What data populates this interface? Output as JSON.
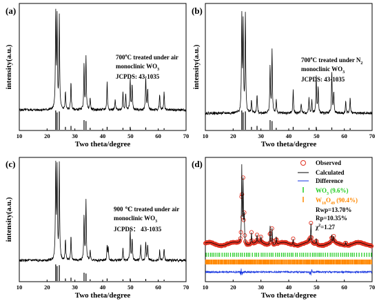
{
  "chart_data": [
    {
      "type": "line",
      "panel_label": "(a)",
      "xlabel": "Two theta/degree",
      "ylabel": "intensity(a.u.)",
      "xlim": [
        10,
        70
      ],
      "xticks": [
        10,
        20,
        30,
        40,
        50,
        60,
        70
      ],
      "annotation": {
        "temp": "700",
        "deg": "o",
        "rest": "C treated under air",
        "phase": "monoclinic WO",
        "phase_sub": "3",
        "card": "JCPDS: 43-1035"
      },
      "peaks": [
        [
          23.1,
          0.95
        ],
        [
          23.6,
          0.88
        ],
        [
          24.4,
          0.92
        ],
        [
          26.6,
          0.18
        ],
        [
          28.6,
          0.28
        ],
        [
          33.3,
          0.45
        ],
        [
          34.0,
          0.52
        ],
        [
          35.5,
          0.12
        ],
        [
          41.6,
          0.28
        ],
        [
          44.5,
          0.1
        ],
        [
          47.3,
          0.18
        ],
        [
          48.3,
          0.15
        ],
        [
          49.9,
          0.3
        ],
        [
          50.6,
          0.25
        ],
        [
          55.5,
          0.33
        ],
        [
          56.2,
          0.2
        ],
        [
          60.5,
          0.15
        ],
        [
          62.1,
          0.18
        ]
      ],
      "reference_sticks": [
        [
          23.1,
          1.0
        ],
        [
          23.6,
          0.9
        ],
        [
          24.4,
          0.95
        ],
        [
          26.6,
          0.15
        ],
        [
          28.6,
          0.2
        ],
        [
          33.3,
          0.5
        ],
        [
          34.0,
          0.45
        ],
        [
          35.5,
          0.1
        ],
        [
          41.6,
          0.15
        ],
        [
          47.3,
          0.1
        ],
        [
          49.9,
          0.15
        ],
        [
          55.5,
          0.12
        ],
        [
          62.1,
          0.08
        ]
      ]
    },
    {
      "type": "line",
      "panel_label": "(b)",
      "xlabel": "Two theta/degree",
      "ylabel": "intensity(a.u.)",
      "xlim": [
        10,
        70
      ],
      "xticks": [
        10,
        20,
        30,
        40,
        50,
        60,
        70
      ],
      "annotation": {
        "temp": "700",
        "deg": "o",
        "rest": "C treated under N",
        "rest_sub": "2",
        "phase": "monoclinic WO",
        "phase_sub": "3",
        "card": "JCPDS: 43-1035"
      },
      "peaks": [
        [
          23.1,
          0.92
        ],
        [
          23.6,
          0.85
        ],
        [
          24.4,
          0.95
        ],
        [
          26.6,
          0.12
        ],
        [
          28.6,
          0.18
        ],
        [
          33.3,
          0.45
        ],
        [
          34.0,
          0.6
        ],
        [
          35.5,
          0.12
        ],
        [
          41.6,
          0.22
        ],
        [
          44.5,
          0.1
        ],
        [
          47.3,
          0.15
        ],
        [
          48.3,
          0.12
        ],
        [
          49.9,
          0.35
        ],
        [
          50.6,
          0.25
        ],
        [
          55.5,
          0.4
        ],
        [
          56.2,
          0.2
        ],
        [
          60.5,
          0.12
        ],
        [
          62.1,
          0.15
        ]
      ],
      "reference_sticks": [
        [
          23.1,
          1.0
        ],
        [
          23.6,
          0.9
        ],
        [
          24.4,
          0.95
        ],
        [
          26.6,
          0.15
        ],
        [
          28.6,
          0.2
        ],
        [
          33.3,
          0.5
        ],
        [
          34.0,
          0.45
        ],
        [
          35.5,
          0.1
        ],
        [
          41.6,
          0.15
        ],
        [
          47.3,
          0.1
        ],
        [
          49.9,
          0.15
        ],
        [
          55.5,
          0.12
        ],
        [
          62.1,
          0.08
        ]
      ]
    },
    {
      "type": "line",
      "panel_label": "(c)",
      "xlabel": "Two theta/degree",
      "ylabel": "intensity(a.u.)",
      "xlim": [
        10,
        70
      ],
      "xticks": [
        10,
        20,
        30,
        40,
        50,
        60,
        70
      ],
      "annotation": {
        "temp": "900",
        "deg": "",
        "rest": "℃ treated under air",
        "phase": "monoclinic WO",
        "phase_sub": "3",
        "card": "JCPDS：  43-1035"
      },
      "peaks": [
        [
          23.1,
          0.98
        ],
        [
          23.6,
          0.9
        ],
        [
          24.4,
          0.96
        ],
        [
          26.6,
          0.22
        ],
        [
          28.6,
          0.24
        ],
        [
          33.3,
          0.45
        ],
        [
          34.0,
          0.6
        ],
        [
          35.5,
          0.1
        ],
        [
          41.6,
          0.15
        ],
        [
          42.0,
          0.12
        ],
        [
          47.3,
          0.12
        ],
        [
          49.9,
          0.3
        ],
        [
          50.6,
          0.22
        ],
        [
          53.7,
          0.15
        ],
        [
          55.5,
          0.18
        ],
        [
          56.2,
          0.15
        ],
        [
          60.5,
          0.1
        ],
        [
          62.1,
          0.12
        ]
      ],
      "reference_sticks": [
        [
          23.1,
          1.0
        ],
        [
          23.6,
          0.9
        ],
        [
          24.4,
          0.95
        ],
        [
          26.6,
          0.15
        ],
        [
          28.6,
          0.2
        ],
        [
          33.3,
          0.5
        ],
        [
          34.0,
          0.45
        ],
        [
          35.5,
          0.1
        ],
        [
          41.6,
          0.15
        ],
        [
          47.3,
          0.1
        ],
        [
          49.9,
          0.15
        ],
        [
          55.5,
          0.12
        ],
        [
          62.1,
          0.08
        ]
      ]
    },
    {
      "type": "line",
      "panel_label": "(d)",
      "xlabel": "Two theta/degree",
      "ylabel": "",
      "xlim": [
        10,
        70
      ],
      "xticks": [
        10,
        20,
        30,
        40,
        50,
        60,
        70
      ],
      "legend_position": "top-right",
      "legend": [
        {
          "label": "Observed",
          "color": "#e03020",
          "marker": "circle"
        },
        {
          "label": "Calculated",
          "color": "#000000",
          "marker": "line"
        },
        {
          "label": "Difference",
          "color": "#1030e0",
          "marker": "line"
        },
        {
          "label": "WO",
          "sub": "3",
          "tail": " (9.6%)",
          "color": "#22cc22",
          "marker": "tick"
        },
        {
          "label": "W",
          "sub": "18",
          "mid": "O",
          "sub2": "49",
          "tail": " (90.4%)",
          "color": "#ff8800",
          "marker": "tick"
        }
      ],
      "stats": {
        "rwp": "Rwp=13.70%",
        "rp": "Rp=10.35%",
        "chi": "χ",
        "chi_sup": "2",
        "chi_val": "=1.27"
      },
      "peaks": [
        [
          23.1,
          1.0
        ],
        [
          23.6,
          0.8
        ],
        [
          24.0,
          0.35
        ],
        [
          26.6,
          0.15
        ],
        [
          28.6,
          0.1
        ],
        [
          30.0,
          0.08
        ],
        [
          33.3,
          0.25
        ],
        [
          34.0,
          0.22
        ],
        [
          35.5,
          0.1
        ],
        [
          41.6,
          0.08
        ],
        [
          47.3,
          0.05
        ],
        [
          48.0,
          0.25
        ],
        [
          49.9,
          0.08
        ],
        [
          55.5,
          0.1
        ],
        [
          56.2,
          0.08
        ],
        [
          60.5,
          0.05
        ]
      ],
      "colors": {
        "observed": "#e03020",
        "calculated": "#000000",
        "difference": "#1030e0",
        "wo3_ticks": "#22cc22",
        "w18o49_ticks": "#ff8800"
      }
    }
  ]
}
